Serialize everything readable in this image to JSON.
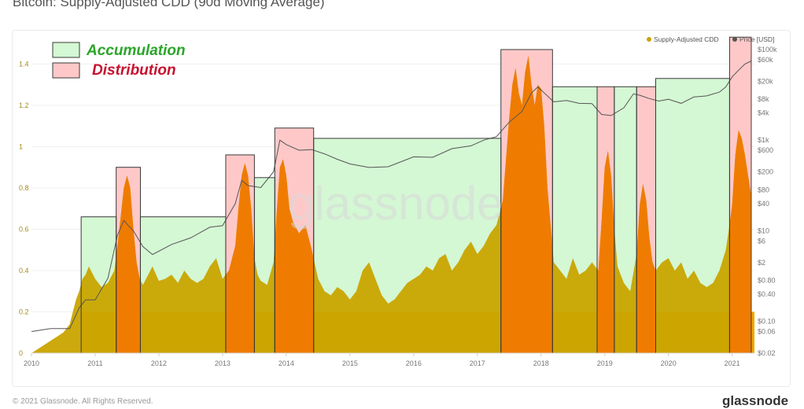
{
  "page": {
    "title": "Bitcoin: Supply-Adjusted CDD (90d Moving Average)",
    "footer_left": "© 2021 Glassnode. All Rights Reserved.",
    "footer_logo": "glassnode",
    "watermark": "glassnode"
  },
  "colors": {
    "cdd": "#c9a400",
    "cdd_distribution": "#ef7c00",
    "baseline": "#f0a500",
    "price": "#555555",
    "accumulation_fill": "#d4f7d4",
    "accumulation_stroke": "#3a3a3a",
    "distribution_fill": "#ffc8c8",
    "distribution_stroke": "#3a3a3a",
    "accumulation_text": "#2aa52a",
    "distribution_text": "#c8102e"
  },
  "chart_data": {
    "type": "area",
    "title": "Bitcoin: Supply-Adjusted CDD (90d Moving Average)",
    "x_ticks": [
      "2010",
      "2011",
      "2012",
      "2013",
      "2014",
      "2015",
      "2016",
      "2017",
      "2018",
      "2019",
      "2020",
      "2021"
    ],
    "x_range": [
      2010.0,
      2021.35
    ],
    "y_left": {
      "ticks": [
        "0",
        "0.2",
        "0.4",
        "0.6",
        "0.8",
        "1",
        "1.2",
        "1.4"
      ],
      "values": [
        0,
        0.2,
        0.4,
        0.6,
        0.8,
        1.0,
        1.2,
        1.4
      ],
      "range": [
        0,
        1.47
      ]
    },
    "y_right": {
      "scale": "log",
      "ticks": [
        "$100k",
        "$60k",
        "$20k",
        "$8k",
        "$4k",
        "$1k",
        "$600",
        "$200",
        "$80",
        "$40",
        "$10",
        "$6",
        "$2",
        "$0.80",
        "$0.40",
        "$0.10",
        "$0.06",
        "$0.02"
      ],
      "values": [
        100000,
        60000,
        20000,
        8000,
        4000,
        1000,
        600,
        200,
        80,
        40,
        10,
        6,
        2,
        0.8,
        0.4,
        0.1,
        0.06,
        0.02
      ],
      "range": [
        0.02,
        100000
      ]
    },
    "legend": [
      "Supply-Adjusted CDD",
      "Price [USD]"
    ],
    "legend_position": "top-right",
    "grid": true,
    "zone_legend": {
      "accumulation": "Accumulation",
      "distribution": "Distribution"
    },
    "zones": [
      {
        "type": "accumulation",
        "start": 2010.78,
        "end": 2011.33,
        "top": 0.66
      },
      {
        "type": "distribution",
        "start": 2011.33,
        "end": 2011.71,
        "top": 0.9
      },
      {
        "type": "accumulation",
        "start": 2011.71,
        "end": 2013.05,
        "top": 0.66
      },
      {
        "type": "distribution",
        "start": 2013.05,
        "end": 2013.5,
        "top": 0.96
      },
      {
        "type": "accumulation",
        "start": 2013.5,
        "end": 2013.82,
        "top": 0.85
      },
      {
        "type": "distribution",
        "start": 2013.82,
        "end": 2014.43,
        "top": 1.09
      },
      {
        "type": "accumulation",
        "start": 2014.43,
        "end": 2017.37,
        "top": 1.04
      },
      {
        "type": "distribution",
        "start": 2017.37,
        "end": 2018.18,
        "top": 1.47
      },
      {
        "type": "accumulation",
        "start": 2018.18,
        "end": 2018.88,
        "top": 1.29
      },
      {
        "type": "distribution",
        "start": 2018.88,
        "end": 2019.15,
        "top": 1.29
      },
      {
        "type": "accumulation",
        "start": 2019.15,
        "end": 2019.5,
        "top": 1.29
      },
      {
        "type": "distribution",
        "start": 2019.5,
        "end": 2019.8,
        "top": 1.29
      },
      {
        "type": "accumulation",
        "start": 2019.8,
        "end": 2020.96,
        "top": 1.33
      },
      {
        "type": "distribution",
        "start": 2020.96,
        "end": 2021.3,
        "top": 1.53
      }
    ],
    "series": [
      {
        "name": "Supply-Adjusted CDD",
        "x": [
          2010.0,
          2010.1,
          2010.2,
          2010.3,
          2010.4,
          2010.5,
          2010.6,
          2010.65,
          2010.7,
          2010.75,
          2010.8,
          2010.85,
          2010.9,
          2011.0,
          2011.1,
          2011.2,
          2011.3,
          2011.35,
          2011.4,
          2011.45,
          2011.5,
          2011.55,
          2011.6,
          2011.65,
          2011.7,
          2011.75,
          2011.8,
          2011.9,
          2012.0,
          2012.1,
          2012.2,
          2012.3,
          2012.4,
          2012.5,
          2012.6,
          2012.7,
          2012.8,
          2012.9,
          2013.0,
          2013.1,
          2013.2,
          2013.25,
          2013.3,
          2013.35,
          2013.4,
          2013.45,
          2013.5,
          2013.55,
          2013.6,
          2013.7,
          2013.8,
          2013.85,
          2013.9,
          2013.95,
          2014.0,
          2014.05,
          2014.1,
          2014.2,
          2014.3,
          2014.4,
          2014.5,
          2014.6,
          2014.7,
          2014.8,
          2014.9,
          2015.0,
          2015.1,
          2015.2,
          2015.3,
          2015.4,
          2015.5,
          2015.6,
          2015.7,
          2015.8,
          2015.9,
          2016.0,
          2016.1,
          2016.2,
          2016.3,
          2016.4,
          2016.5,
          2016.6,
          2016.7,
          2016.8,
          2016.9,
          2017.0,
          2017.1,
          2017.2,
          2017.3,
          2017.4,
          2017.45,
          2017.5,
          2017.55,
          2017.6,
          2017.65,
          2017.7,
          2017.75,
          2017.8,
          2017.85,
          2017.9,
          2017.95,
          2018.0,
          2018.05,
          2018.1,
          2018.15,
          2018.2,
          2018.3,
          2018.4,
          2018.5,
          2018.6,
          2018.7,
          2018.8,
          2018.9,
          2018.95,
          2019.0,
          2019.05,
          2019.1,
          2019.15,
          2019.2,
          2019.3,
          2019.4,
          2019.5,
          2019.55,
          2019.6,
          2019.65,
          2019.7,
          2019.75,
          2019.8,
          2019.9,
          2020.0,
          2020.1,
          2020.2,
          2020.3,
          2020.4,
          2020.5,
          2020.6,
          2020.7,
          2020.8,
          2020.9,
          2020.95,
          2021.0,
          2021.05,
          2021.1,
          2021.15,
          2021.2,
          2021.25,
          2021.3
        ],
        "values": [
          0.0,
          0.02,
          0.04,
          0.06,
          0.08,
          0.1,
          0.14,
          0.2,
          0.26,
          0.3,
          0.36,
          0.38,
          0.42,
          0.36,
          0.32,
          0.34,
          0.4,
          0.52,
          0.66,
          0.8,
          0.86,
          0.8,
          0.6,
          0.44,
          0.36,
          0.33,
          0.36,
          0.42,
          0.35,
          0.36,
          0.38,
          0.34,
          0.4,
          0.36,
          0.34,
          0.36,
          0.42,
          0.46,
          0.36,
          0.4,
          0.52,
          0.7,
          0.86,
          0.92,
          0.86,
          0.7,
          0.46,
          0.38,
          0.35,
          0.33,
          0.44,
          0.68,
          0.9,
          0.94,
          0.86,
          0.7,
          0.64,
          0.58,
          0.62,
          0.5,
          0.36,
          0.3,
          0.28,
          0.32,
          0.3,
          0.26,
          0.3,
          0.4,
          0.44,
          0.36,
          0.28,
          0.24,
          0.26,
          0.3,
          0.34,
          0.36,
          0.38,
          0.42,
          0.4,
          0.46,
          0.48,
          0.4,
          0.44,
          0.5,
          0.54,
          0.48,
          0.52,
          0.58,
          0.62,
          0.74,
          0.94,
          1.14,
          1.3,
          1.38,
          1.26,
          1.2,
          1.36,
          1.44,
          1.3,
          1.2,
          1.3,
          1.28,
          1.1,
          0.8,
          0.62,
          0.44,
          0.4,
          0.36,
          0.46,
          0.38,
          0.4,
          0.44,
          0.4,
          0.64,
          0.9,
          0.98,
          0.86,
          0.6,
          0.42,
          0.34,
          0.3,
          0.48,
          0.72,
          0.82,
          0.74,
          0.56,
          0.44,
          0.4,
          0.44,
          0.46,
          0.4,
          0.44,
          0.36,
          0.4,
          0.34,
          0.32,
          0.34,
          0.4,
          0.5,
          0.6,
          0.72,
          0.96,
          1.08,
          1.04,
          0.96,
          0.86,
          0.76
        ]
      },
      {
        "name": "Price [USD]",
        "x": [
          2010.0,
          2010.3,
          2010.6,
          2010.75,
          2010.85,
          2011.0,
          2011.2,
          2011.35,
          2011.45,
          2011.5,
          2011.6,
          2011.75,
          2011.9,
          2012.2,
          2012.5,
          2012.8,
          2013.0,
          2013.2,
          2013.3,
          2013.4,
          2013.6,
          2013.8,
          2013.9,
          2014.0,
          2014.2,
          2014.4,
          2014.6,
          2014.8,
          2015.0,
          2015.3,
          2015.6,
          2016.0,
          2016.3,
          2016.6,
          2016.9,
          2017.1,
          2017.3,
          2017.5,
          2017.7,
          2017.85,
          2017.95,
          2018.05,
          2018.2,
          2018.4,
          2018.6,
          2018.8,
          2018.95,
          2019.1,
          2019.3,
          2019.45,
          2019.55,
          2019.7,
          2019.85,
          2020.0,
          2020.2,
          2020.4,
          2020.6,
          2020.8,
          2020.9,
          2021.0,
          2021.1,
          2021.2,
          2021.3
        ],
        "values": [
          0.06,
          0.07,
          0.07,
          0.2,
          0.3,
          0.3,
          0.9,
          8,
          17,
          14,
          10,
          4.5,
          3,
          5,
          7,
          12,
          13,
          40,
          130,
          100,
          90,
          200,
          1000,
          800,
          600,
          620,
          500,
          380,
          300,
          250,
          260,
          430,
          420,
          650,
          750,
          1000,
          1200,
          2500,
          4300,
          11000,
          15000,
          11000,
          7000,
          7500,
          6500,
          6400,
          3700,
          3500,
          5200,
          10500,
          9800,
          8300,
          7300,
          8000,
          6500,
          9000,
          9500,
          11500,
          15000,
          25000,
          35000,
          48000,
          56000
        ]
      }
    ]
  }
}
